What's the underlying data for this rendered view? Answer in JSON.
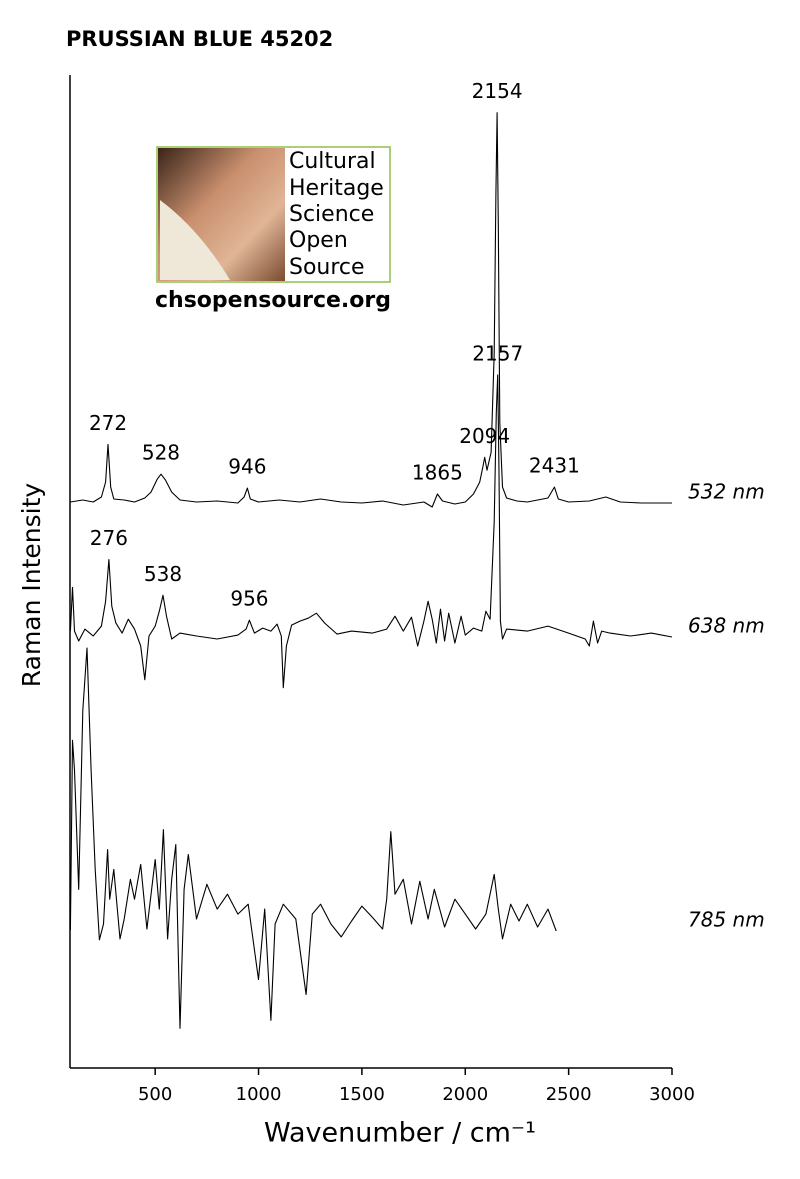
{
  "chart_data": {
    "type": "line",
    "title": "PRUSSIAN BLUE 45202",
    "x_label": "Wavenumber / cm⁻¹",
    "y_label": "Raman Intensity",
    "xlim": [
      88,
      3000
    ],
    "xticks": [
      500,
      1000,
      1500,
      2000,
      2500,
      3000
    ],
    "ylim": [
      0,
      100
    ],
    "series": [
      {
        "name": "532 nm",
        "color": "#000000",
        "x": [
          90,
          150,
          200,
          240,
          260,
          272,
          285,
          300,
          350,
          400,
          450,
          480,
          510,
          528,
          550,
          580,
          620,
          700,
          800,
          900,
          930,
          946,
          960,
          1000,
          1100,
          1200,
          1300,
          1400,
          1500,
          1600,
          1700,
          1800,
          1840,
          1865,
          1890,
          1950,
          2000,
          2040,
          2070,
          2085,
          2094,
          2105,
          2125,
          2140,
          2148,
          2154,
          2160,
          2167,
          2180,
          2200,
          2250,
          2300,
          2400,
          2431,
          2450,
          2500,
          2600,
          2680,
          2750,
          2850,
          3000
        ],
        "values": [
          57.0,
          57.2,
          57.0,
          57.5,
          59,
          62.8,
          58.5,
          57.3,
          57.2,
          57.0,
          57.4,
          58,
          59.3,
          59.8,
          59.2,
          58,
          57.2,
          57.0,
          57.1,
          56.9,
          57.5,
          58.4,
          57.3,
          57.0,
          57.2,
          57.0,
          57.3,
          57.0,
          56.9,
          57.1,
          56.7,
          57.0,
          56.5,
          57.8,
          57.1,
          56.8,
          57.0,
          57.8,
          59,
          60.5,
          61.5,
          60.2,
          62,
          72,
          88,
          96.2,
          85,
          65,
          58.5,
          57.4,
          57.1,
          57.0,
          57.4,
          58.5,
          57.3,
          57.0,
          57.1,
          57.5,
          57.0,
          56.9,
          56.9
        ],
        "peaks": [
          272,
          528,
          946,
          1865,
          2094,
          2154,
          2431
        ]
      },
      {
        "name": "638 nm",
        "color": "#000000",
        "x": [
          90,
          100,
          110,
          130,
          160,
          200,
          240,
          260,
          276,
          290,
          310,
          340,
          370,
          400,
          430,
          450,
          470,
          500,
          520,
          538,
          555,
          580,
          620,
          700,
          800,
          900,
          940,
          956,
          980,
          1020,
          1060,
          1090,
          1110,
          1120,
          1135,
          1160,
          1200,
          1240,
          1280,
          1320,
          1380,
          1450,
          1550,
          1620,
          1660,
          1700,
          1740,
          1770,
          1800,
          1820,
          1840,
          1860,
          1880,
          1900,
          1920,
          1950,
          1980,
          2000,
          2040,
          2080,
          2100,
          2120,
          2140,
          2150,
          2157,
          2163,
          2170,
          2180,
          2200,
          2300,
          2400,
          2500,
          2580,
          2600,
          2620,
          2640,
          2660,
          2700,
          2800,
          2900,
          3000
        ],
        "values": [
          44,
          48.4,
          44,
          43.0,
          44.2,
          43.5,
          44.5,
          47,
          51.2,
          46.5,
          44.8,
          43.8,
          45.2,
          44.2,
          42.5,
          39.1,
          43.5,
          44.5,
          46,
          47.6,
          45.5,
          43.2,
          43.8,
          43.5,
          43.2,
          43.6,
          44.2,
          45.1,
          43.8,
          44.3,
          44.0,
          44.7,
          43.5,
          38.3,
          42.5,
          44.6,
          45.0,
          45.3,
          45.8,
          44.8,
          43.7,
          44.0,
          43.8,
          44.2,
          45.5,
          44.0,
          45.4,
          42.5,
          45.0,
          47.0,
          45.2,
          42.8,
          46.2,
          43.0,
          45.8,
          42.8,
          45.5,
          43.6,
          44.3,
          44.0,
          46.0,
          45.2,
          55,
          66,
          69.8,
          60,
          45,
          43.2,
          44.2,
          44.0,
          44.5,
          43.8,
          43.2,
          42.5,
          45.0,
          42.8,
          44.0,
          43.8,
          43.5,
          43.8,
          43.4
        ],
        "peaks": [
          276,
          538,
          956,
          2157
        ]
      },
      {
        "name": "785 nm",
        "color": "#000000",
        "x": [
          90,
          100,
          110,
          130,
          150,
          170,
          190,
          210,
          230,
          250,
          270,
          280,
          300,
          330,
          350,
          380,
          400,
          430,
          460,
          500,
          520,
          540,
          560,
          580,
          600,
          620,
          640,
          660,
          700,
          750,
          800,
          850,
          900,
          950,
          1000,
          1030,
          1060,
          1080,
          1120,
          1180,
          1230,
          1260,
          1300,
          1350,
          1400,
          1450,
          1500,
          1550,
          1600,
          1620,
          1640,
          1660,
          1700,
          1740,
          1780,
          1820,
          1850,
          1900,
          1950,
          2000,
          2050,
          2100,
          2140,
          2160,
          2180,
          2220,
          2260,
          2300,
          2350,
          2400,
          2440
        ],
        "values": [
          13.9,
          33,
          30,
          18,
          36,
          42.3,
          30,
          20,
          12.9,
          14.5,
          22,
          17,
          20,
          13,
          15,
          19,
          17,
          20.5,
          14,
          21,
          16,
          24,
          13,
          19,
          22.5,
          4.0,
          18,
          21.5,
          15,
          18.5,
          16,
          17.5,
          15.5,
          16.5,
          8.9,
          16,
          4.8,
          14.5,
          16.5,
          15,
          7.4,
          15.5,
          16.5,
          14.5,
          13.2,
          14.8,
          16.3,
          15.2,
          14.0,
          17,
          23.8,
          17.5,
          19,
          14.5,
          18.8,
          15,
          18,
          14.2,
          17,
          15.5,
          14,
          15.5,
          19.5,
          16,
          13,
          16.5,
          14.8,
          16.5,
          14.2,
          16,
          13.8
        ],
        "peaks": []
      }
    ]
  },
  "logo": {
    "lines": [
      "Cultural",
      "Heritage",
      "Science",
      "Open",
      "Source"
    ],
    "url": "chsopensource.org"
  }
}
